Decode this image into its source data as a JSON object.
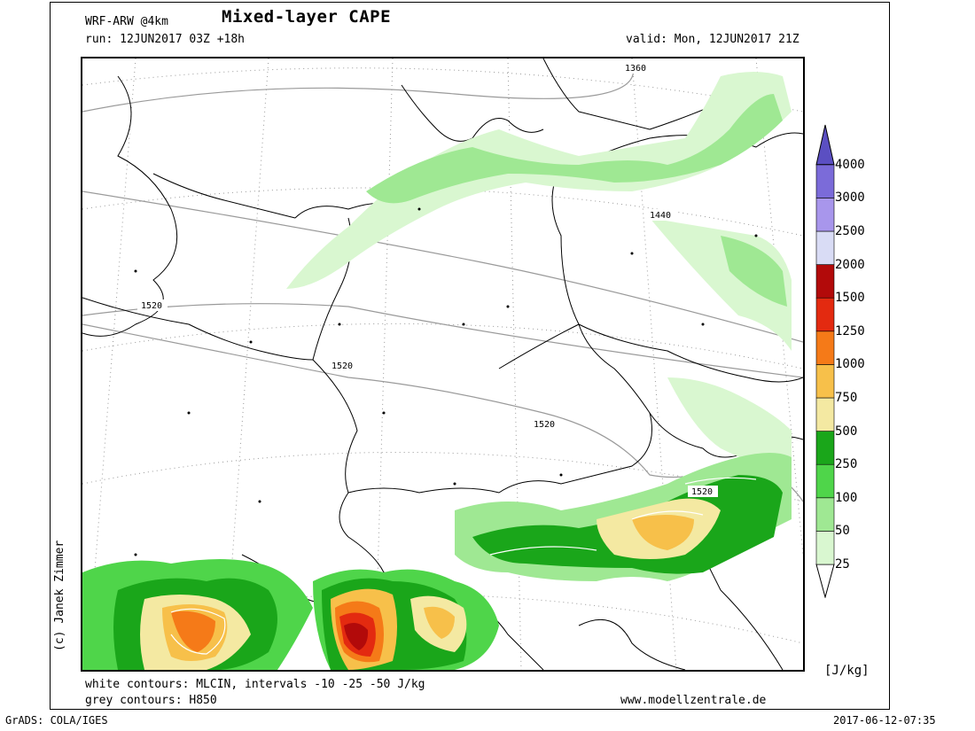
{
  "header": {
    "model": "WRF-ARW @4km",
    "title": "Mixed-layer CAPE",
    "run": "run: 12JUN2017 03Z +18h",
    "valid": "valid: Mon, 12JUN2017 21Z"
  },
  "side_credit": "(c) Janek Zimmer",
  "footer": {
    "white_contours": "white contours: MLCIN, intervals -10 -25 -50 J/kg",
    "grey_contours": "grey contours: H850",
    "website": "www.modellzentrale.de",
    "grads": "GrADS: COLA/IGES",
    "timestamp": "2017-06-12-07:35"
  },
  "legend": {
    "unit": "[J/kg]",
    "levels": [
      {
        "label": "25",
        "color": "#d9f7d0"
      },
      {
        "label": "50",
        "color": "#9fe893"
      },
      {
        "label": "100",
        "color": "#4fd54a"
      },
      {
        "label": "250",
        "color": "#1aa61a"
      },
      {
        "label": "500",
        "color": "#f4e9a2"
      },
      {
        "label": "750",
        "color": "#f7c04a"
      },
      {
        "label": "1000",
        "color": "#f57a18"
      },
      {
        "label": "1250",
        "color": "#e32a10"
      },
      {
        "label": "1500",
        "color": "#b20a0a"
      },
      {
        "label": "2000",
        "color": "#d9dcf5"
      },
      {
        "label": "2500",
        "color": "#a896ec"
      },
      {
        "label": "3000",
        "color": "#7b6bd9"
      },
      {
        "label": "4000",
        "color": "#5b4fc2"
      }
    ]
  },
  "contour_labels": [
    "1360",
    "1440",
    "1520",
    "1520",
    "1520",
    "1520"
  ]
}
